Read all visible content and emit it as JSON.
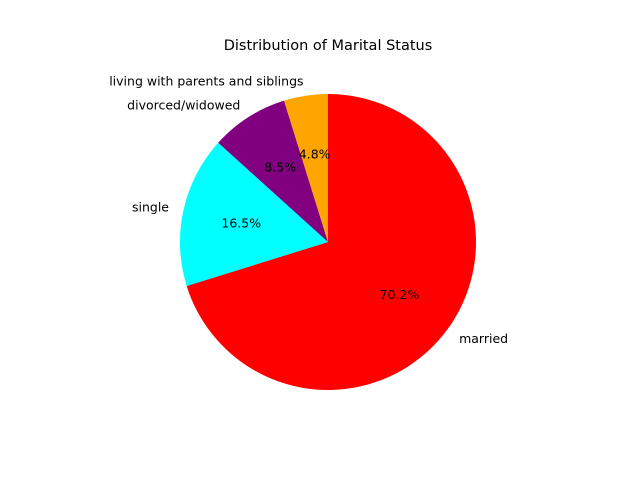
{
  "chart_data": {
    "type": "pie",
    "title": "Distribution of Marital Status",
    "categories": [
      "married",
      "single",
      "divorced/widowed",
      "living with parents and siblings"
    ],
    "values": [
      70.2,
      16.5,
      8.5,
      4.8
    ],
    "percent_labels": [
      "70.2%",
      "16.5%",
      "8.5%",
      "4.8%"
    ],
    "colors": [
      "#ff0000",
      "#00ffff",
      "#800080",
      "#ffa500"
    ],
    "start_angle_deg": 90,
    "direction": "clockwise",
    "legend": "none"
  }
}
